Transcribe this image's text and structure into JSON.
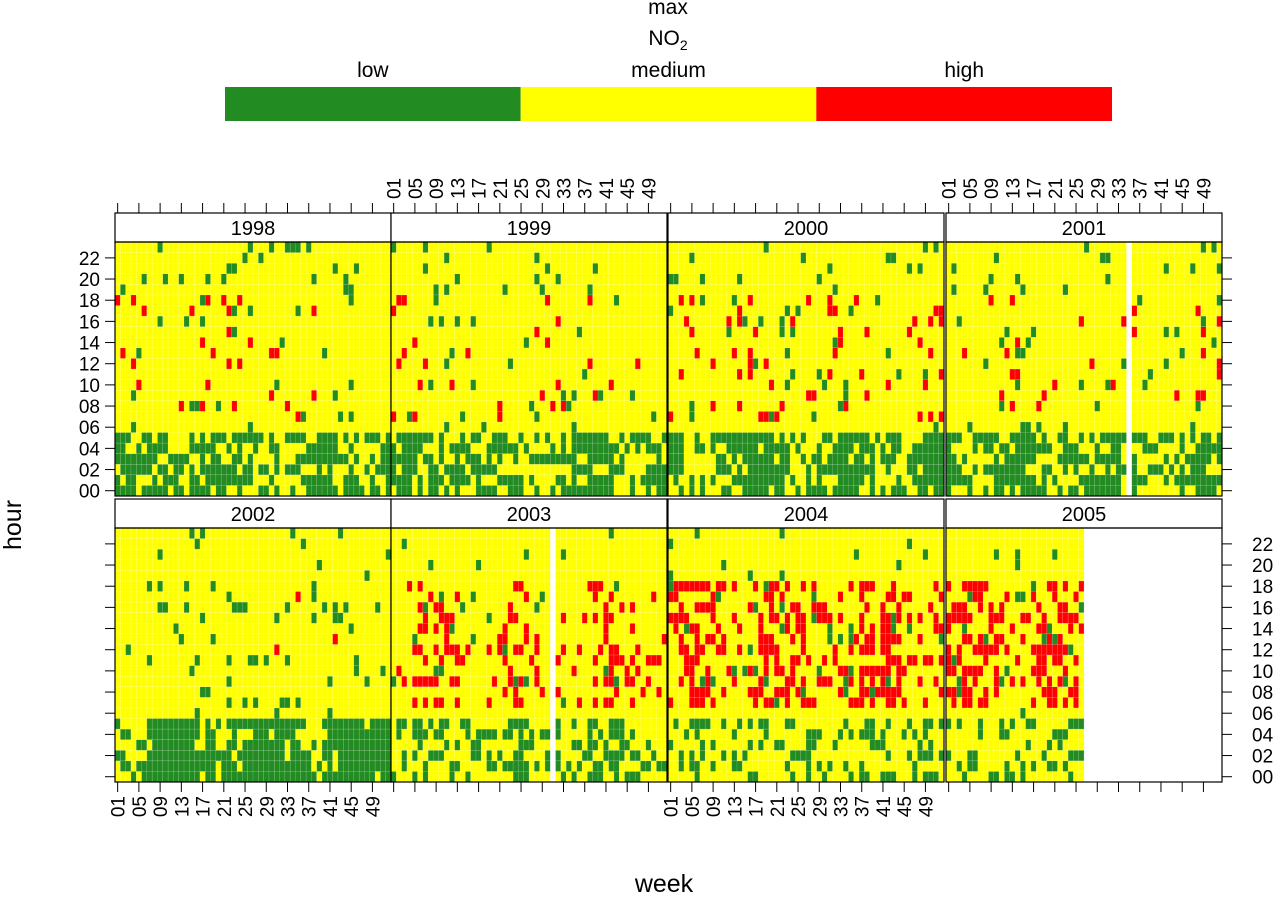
{
  "chart_data": {
    "type": "heatmap",
    "title": "",
    "legend": {
      "title_line1": "max",
      "title_line2": "NO",
      "title_sub": "2",
      "position": "top",
      "levels": [
        {
          "label": "low",
          "color": "#228B22"
        },
        {
          "label": "medium",
          "color": "#FFFF00"
        },
        {
          "label": "high",
          "color": "#FF0000"
        }
      ]
    },
    "xlabel": "week",
    "ylabel": "hour",
    "x_ticks": [
      "01",
      "05",
      "09",
      "13",
      "17",
      "21",
      "25",
      "29",
      "33",
      "37",
      "41",
      "45",
      "49"
    ],
    "y_ticks": [
      "00",
      "02",
      "04",
      "06",
      "08",
      "10",
      "12",
      "14",
      "16",
      "18",
      "20",
      "22"
    ],
    "weeks": 52,
    "hours": 24,
    "panels": [
      {
        "year": "1998",
        "profile": "early",
        "last_week": 52,
        "gap_week": null
      },
      {
        "year": "1999",
        "profile": "early",
        "last_week": 52,
        "gap_week": null
      },
      {
        "year": "2000",
        "profile": "mid",
        "last_week": 52,
        "gap_week": null
      },
      {
        "year": "2001",
        "profile": "early",
        "last_week": 52,
        "gap_week": 34
      },
      {
        "year": "2002",
        "profile": "low",
        "last_week": 52,
        "gap_week": null
      },
      {
        "year": "2003",
        "profile": "late",
        "last_week": 52,
        "gap_week": 30
      },
      {
        "year": "2004",
        "profile": "high",
        "last_week": 52,
        "gap_week": null
      },
      {
        "year": "2005",
        "profile": "high",
        "last_week": 26,
        "gap_week": null
      }
    ]
  }
}
